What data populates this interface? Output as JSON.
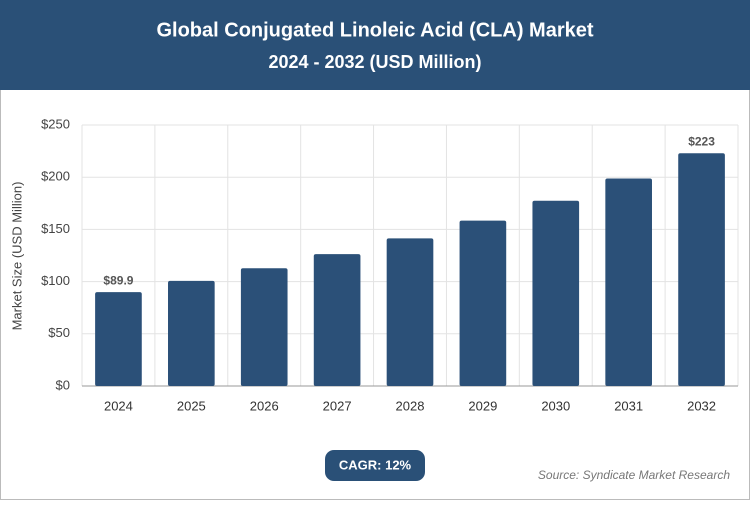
{
  "chart_data": {
    "type": "bar",
    "title": "Global Conjugated Linoleic Acid (CLA) Market",
    "subtitle": "2024 - 2032 (USD Million)",
    "y_label": "Market Size (USD Million)",
    "categories": [
      "2024",
      "2025",
      "2026",
      "2027",
      "2028",
      "2029",
      "2030",
      "2031",
      "2032"
    ],
    "values": [
      89.9,
      100.7,
      112.8,
      126.3,
      141.4,
      158.4,
      177.4,
      198.7,
      223
    ],
    "value_labels": [
      "$89.9",
      null,
      null,
      null,
      null,
      null,
      null,
      null,
      "$223"
    ],
    "color": "#2b5078",
    "ylim": [
      0,
      250
    ],
    "yticks": [
      {
        "value": 0,
        "label": "$0"
      },
      {
        "value": 50,
        "label": "$50"
      },
      {
        "value": 100,
        "label": "$100"
      },
      {
        "value": 150,
        "label": "$150"
      },
      {
        "value": 200,
        "label": "$200"
      },
      {
        "value": 250,
        "label": "$250"
      }
    ],
    "grid": true,
    "cagr": "CAGR: 12%",
    "source": "Source: Syndicate Market Research"
  }
}
